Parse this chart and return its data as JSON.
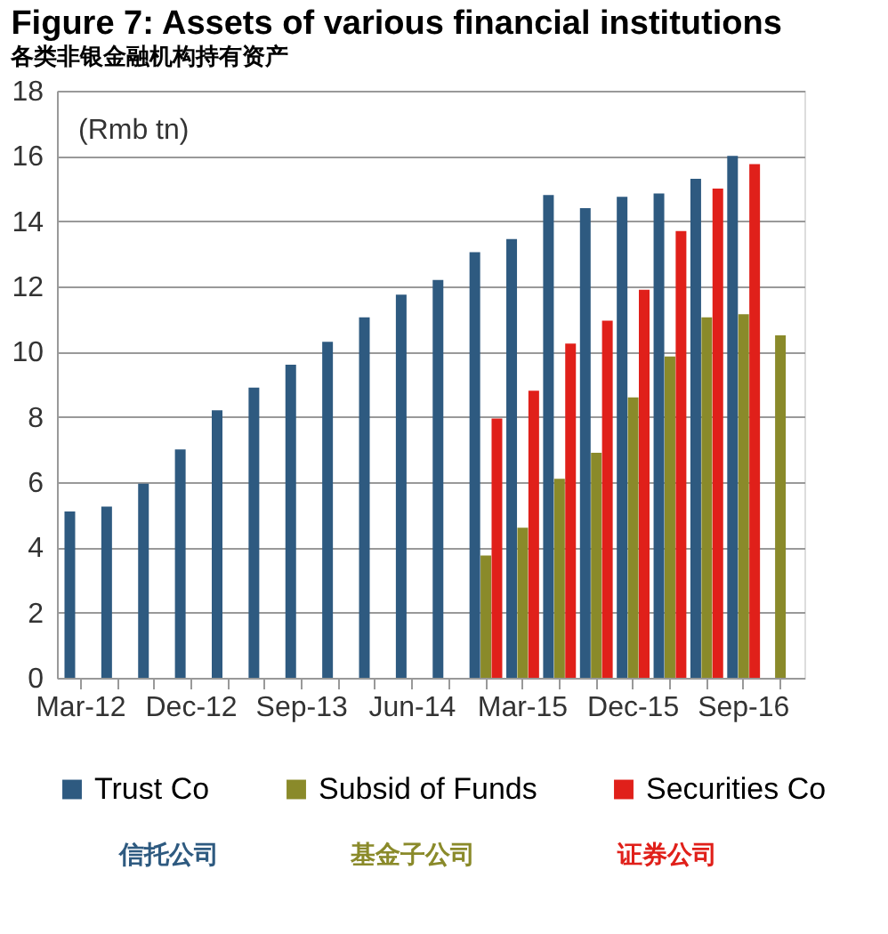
{
  "chart_data": {
    "type": "bar",
    "title": "Figure 7: Assets of various financial institutions",
    "subtitle": "各类非银金融机构持有资产",
    "ylabel": "(Rmb tn)",
    "categories": [
      "Mar-12",
      null,
      null,
      "Dec-12",
      null,
      null,
      "Sep-13",
      null,
      null,
      "Jun-14",
      null,
      null,
      "Mar-15",
      null,
      null,
      "Dec-15",
      null,
      null,
      "Sep-16",
      null
    ],
    "series": [
      {
        "name": "Trust Co",
        "color": "#2e5a80",
        "values": [
          5.1,
          5.25,
          5.95,
          7.0,
          8.2,
          8.9,
          9.6,
          10.3,
          11.05,
          11.75,
          12.2,
          13.05,
          13.45,
          14.8,
          14.4,
          14.75,
          14.85,
          15.3,
          16.0,
          null
        ]
      },
      {
        "name": "Subsid of Funds",
        "color": "#8a8a2a",
        "values": [
          null,
          null,
          null,
          null,
          null,
          null,
          null,
          null,
          null,
          null,
          null,
          3.75,
          4.6,
          6.1,
          6.9,
          8.6,
          9.85,
          11.05,
          11.15,
          10.5
        ]
      },
      {
        "name": "Securities Co",
        "color": "#e0201a",
        "values": [
          null,
          null,
          null,
          null,
          null,
          null,
          null,
          null,
          null,
          null,
          null,
          7.95,
          8.8,
          10.25,
          10.95,
          11.9,
          13.7,
          15.0,
          15.75,
          null
        ]
      }
    ],
    "annotations": [
      "信托公司",
      "基金子公司",
      "证券公司"
    ],
    "ylim": [
      0,
      18
    ],
    "yticks": [
      0,
      2,
      4,
      6,
      8,
      10,
      12,
      14,
      16,
      18
    ],
    "grid": "y",
    "legend": "bottom"
  }
}
